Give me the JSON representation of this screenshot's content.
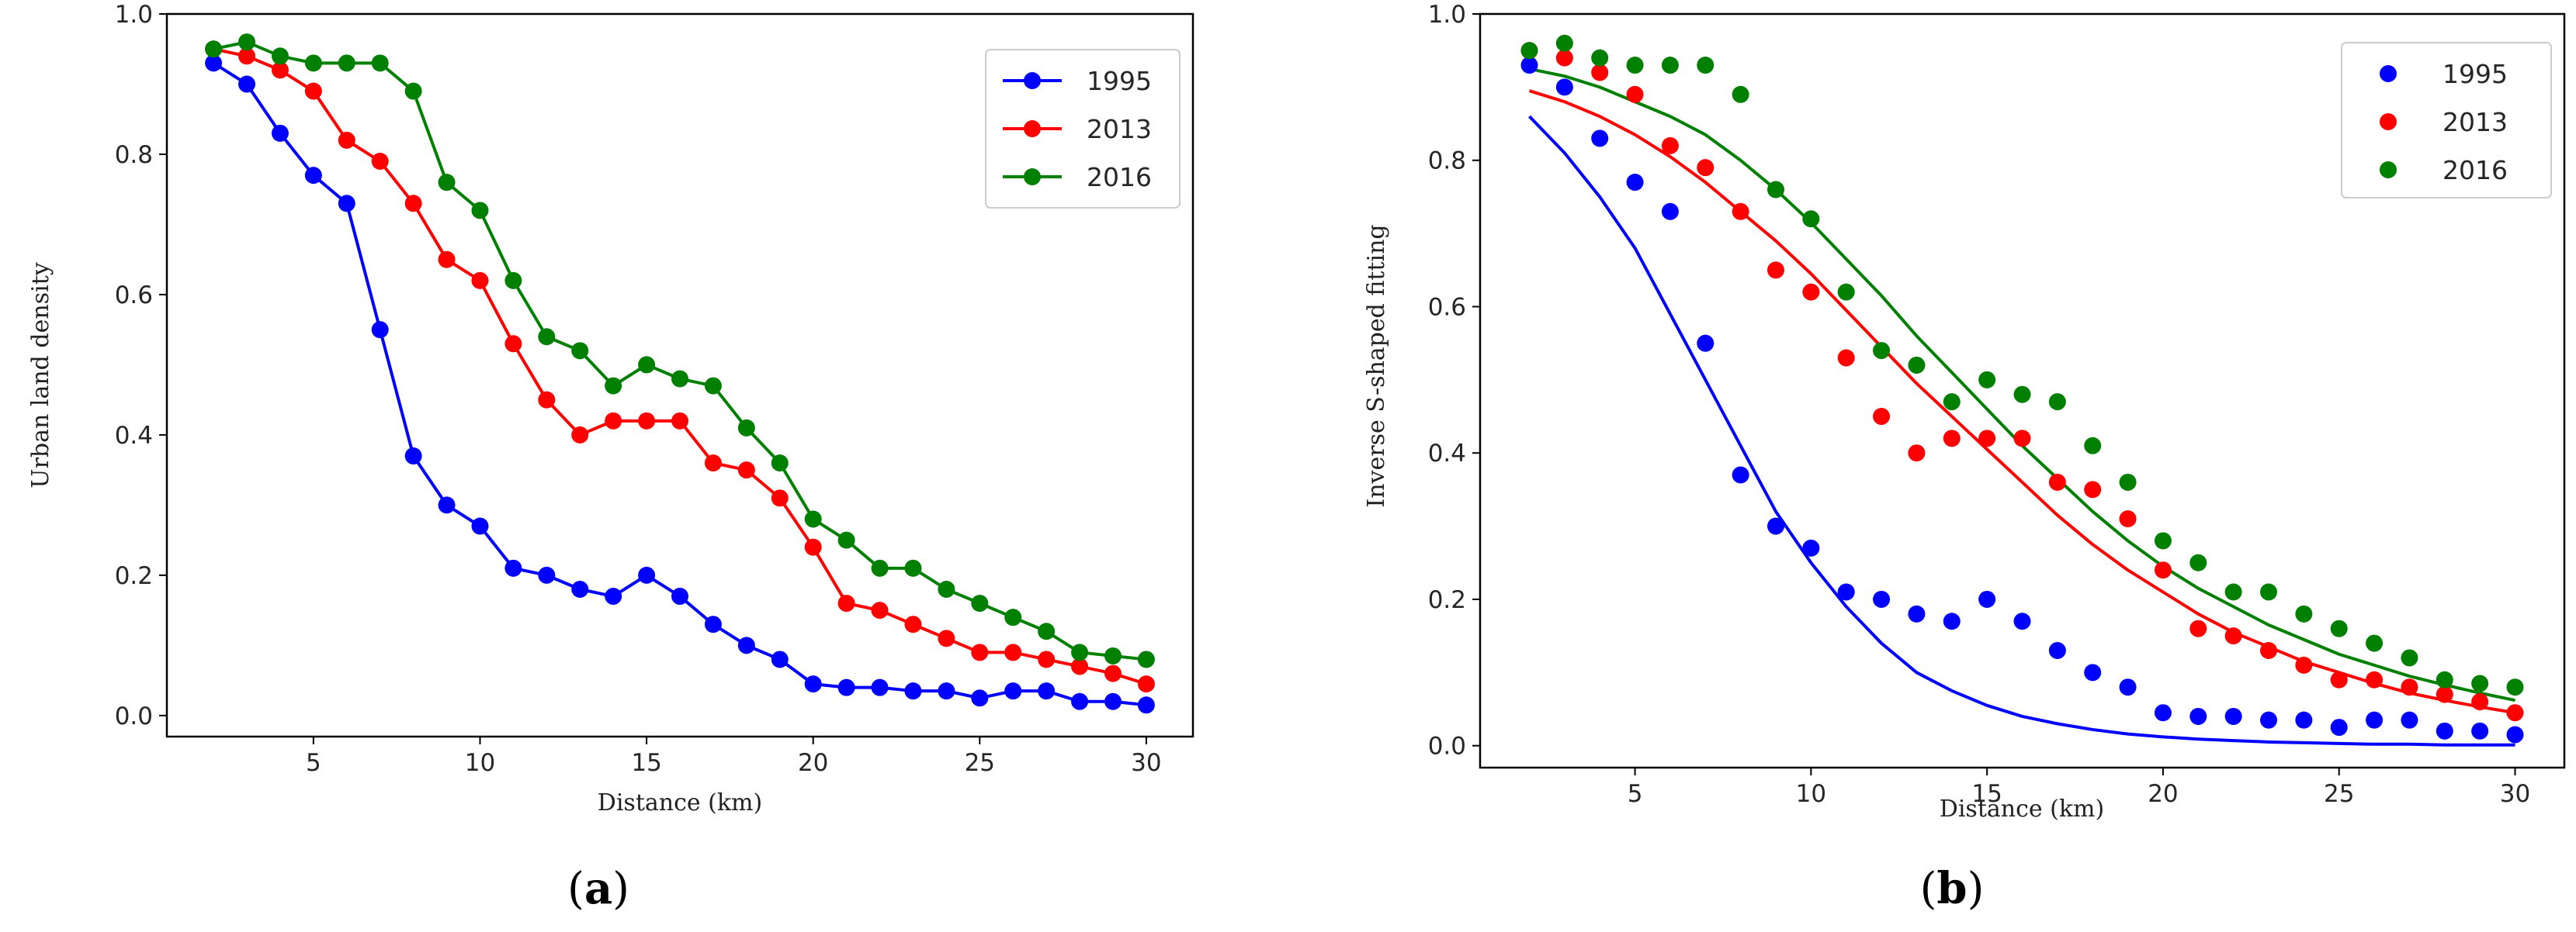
{
  "colors": {
    "1995": "#0000ff",
    "2013": "#ff0000",
    "2016": "#008000"
  },
  "chart_data": [
    {
      "id": "a",
      "type": "line",
      "panel_label": {
        "open": "(",
        "letter": "a",
        "close": ")"
      },
      "xlabel": "Distance (km)",
      "ylabel": "Urban land density",
      "xlim": [
        0.6,
        31.4
      ],
      "ylim": [
        -0.03,
        1.0
      ],
      "xticks": [
        5,
        10,
        15,
        20,
        25,
        30
      ],
      "yticks": [
        "0.0",
        "0.2",
        "0.4",
        "0.6",
        "0.8",
        "1.0"
      ],
      "legend_position": "top-right",
      "x": [
        2,
        3,
        4,
        5,
        6,
        7,
        8,
        9,
        10,
        11,
        12,
        13,
        14,
        15,
        16,
        17,
        18,
        19,
        20,
        21,
        22,
        23,
        24,
        25,
        26,
        27,
        28,
        29,
        30
      ],
      "series": [
        {
          "name": "1995",
          "color": "#0000ff",
          "values": [
            0.93,
            0.9,
            0.83,
            0.77,
            0.73,
            0.55,
            0.37,
            0.3,
            0.27,
            0.21,
            0.2,
            0.18,
            0.17,
            0.2,
            0.17,
            0.13,
            0.1,
            0.08,
            0.045,
            0.04,
            0.04,
            0.035,
            0.035,
            0.025,
            0.035,
            0.035,
            0.02,
            0.02,
            0.015
          ]
        },
        {
          "name": "2013",
          "color": "#ff0000",
          "values": [
            0.95,
            0.94,
            0.92,
            0.89,
            0.82,
            0.79,
            0.73,
            0.65,
            0.62,
            0.53,
            0.45,
            0.4,
            0.42,
            0.42,
            0.42,
            0.36,
            0.35,
            0.31,
            0.24,
            0.16,
            0.15,
            0.13,
            0.11,
            0.09,
            0.09,
            0.08,
            0.07,
            0.06,
            0.045
          ]
        },
        {
          "name": "2016",
          "color": "#008000",
          "values": [
            0.95,
            0.96,
            0.94,
            0.93,
            0.93,
            0.93,
            0.89,
            0.76,
            0.72,
            0.62,
            0.54,
            0.52,
            0.47,
            0.5,
            0.48,
            0.47,
            0.41,
            0.36,
            0.28,
            0.25,
            0.21,
            0.21,
            0.18,
            0.16,
            0.14,
            0.12,
            0.09,
            0.085,
            0.08
          ]
        }
      ]
    },
    {
      "id": "b",
      "type": "scatter",
      "panel_label": {
        "open": "(",
        "letter": "b",
        "close": ")"
      },
      "xlabel": "Distance (km)",
      "ylabel": "Inverse S-shaped fitting",
      "xlim": [
        0.6,
        31.4
      ],
      "ylim": [
        -0.03,
        1.0
      ],
      "xticks": [
        5,
        10,
        15,
        20,
        25,
        30
      ],
      "yticks": [
        "0.0",
        "0.2",
        "0.4",
        "0.6",
        "0.8",
        "1.0"
      ],
      "legend_position": "top-right",
      "x": [
        2,
        3,
        4,
        5,
        6,
        7,
        8,
        9,
        10,
        11,
        12,
        13,
        14,
        15,
        16,
        17,
        18,
        19,
        20,
        21,
        22,
        23,
        24,
        25,
        26,
        27,
        28,
        29,
        30
      ],
      "series": [
        {
          "name": "1995",
          "color": "#0000ff",
          "values": [
            0.93,
            0.9,
            0.83,
            0.77,
            0.73,
            0.55,
            0.37,
            0.3,
            0.27,
            0.21,
            0.2,
            0.18,
            0.17,
            0.2,
            0.17,
            0.13,
            0.1,
            0.08,
            0.045,
            0.04,
            0.04,
            0.035,
            0.035,
            0.025,
            0.035,
            0.035,
            0.02,
            0.02,
            0.015
          ],
          "fit_x": [
            2,
            3,
            4,
            5,
            6,
            7,
            8,
            9,
            10,
            11,
            12,
            13,
            14,
            15,
            16,
            17,
            18,
            19,
            20,
            21,
            22,
            23,
            24,
            25,
            26,
            27,
            28,
            29,
            30
          ],
          "fit_y": [
            0.86,
            0.81,
            0.75,
            0.68,
            0.59,
            0.5,
            0.41,
            0.32,
            0.25,
            0.19,
            0.14,
            0.1,
            0.075,
            0.055,
            0.04,
            0.03,
            0.022,
            0.016,
            0.012,
            0.009,
            0.007,
            0.005,
            0.004,
            0.003,
            0.002,
            0.002,
            0.001,
            0.001,
            0.001
          ]
        },
        {
          "name": "2013",
          "color": "#ff0000",
          "values": [
            0.95,
            0.94,
            0.92,
            0.89,
            0.82,
            0.79,
            0.73,
            0.65,
            0.62,
            0.53,
            0.45,
            0.4,
            0.42,
            0.42,
            0.42,
            0.36,
            0.35,
            0.31,
            0.24,
            0.16,
            0.15,
            0.13,
            0.11,
            0.09,
            0.09,
            0.08,
            0.07,
            0.06,
            0.045
          ],
          "fit_x": [
            2,
            3,
            4,
            5,
            6,
            7,
            8,
            9,
            10,
            11,
            12,
            13,
            14,
            15,
            16,
            17,
            18,
            19,
            20,
            21,
            22,
            23,
            24,
            25,
            26,
            27,
            28,
            29,
            30
          ],
          "fit_y": [
            0.895,
            0.88,
            0.86,
            0.835,
            0.805,
            0.77,
            0.73,
            0.69,
            0.645,
            0.595,
            0.545,
            0.495,
            0.45,
            0.405,
            0.36,
            0.315,
            0.275,
            0.24,
            0.21,
            0.18,
            0.155,
            0.135,
            0.115,
            0.1,
            0.085,
            0.072,
            0.062,
            0.053,
            0.045
          ]
        },
        {
          "name": "2016",
          "color": "#008000",
          "values": [
            0.95,
            0.96,
            0.94,
            0.93,
            0.93,
            0.93,
            0.89,
            0.76,
            0.72,
            0.62,
            0.54,
            0.52,
            0.47,
            0.5,
            0.48,
            0.47,
            0.41,
            0.36,
            0.28,
            0.25,
            0.21,
            0.21,
            0.18,
            0.16,
            0.14,
            0.12,
            0.09,
            0.085,
            0.08
          ],
          "fit_x": [
            2,
            3,
            4,
            5,
            6,
            7,
            8,
            9,
            10,
            11,
            12,
            13,
            14,
            15,
            16,
            17,
            18,
            19,
            20,
            21,
            22,
            23,
            24,
            25,
            26,
            27,
            28,
            29,
            30
          ],
          "fit_y": [
            0.925,
            0.915,
            0.9,
            0.88,
            0.86,
            0.835,
            0.8,
            0.76,
            0.715,
            0.665,
            0.615,
            0.56,
            0.51,
            0.46,
            0.41,
            0.365,
            0.32,
            0.28,
            0.245,
            0.215,
            0.19,
            0.165,
            0.145,
            0.125,
            0.11,
            0.095,
            0.083,
            0.072,
            0.062
          ]
        }
      ]
    }
  ]
}
